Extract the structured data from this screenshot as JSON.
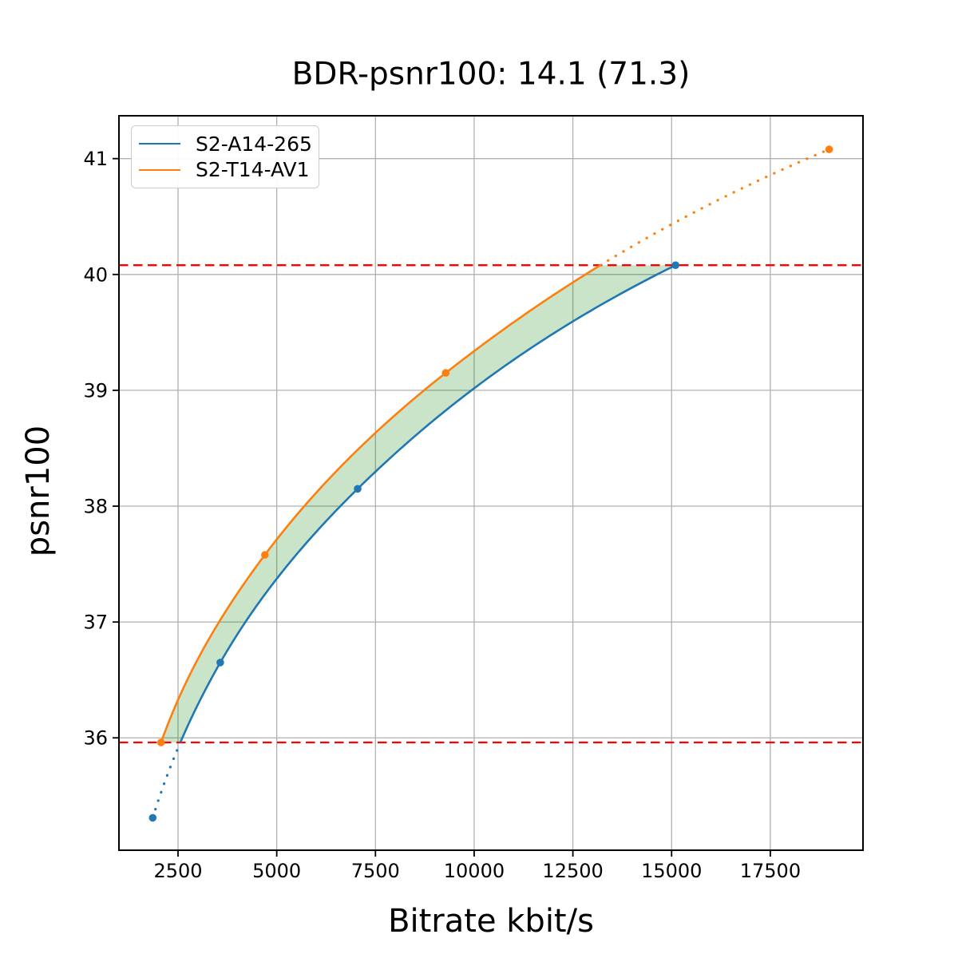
{
  "figure": {
    "title": "BDR-psnr100: 14.1 (71.3)",
    "xlabel": "Bitrate kbit/s",
    "ylabel": "psnr100"
  },
  "legend": {
    "position": "upper-left",
    "items": [
      {
        "label": "S2-A14-265",
        "color": "#1f77b4"
      },
      {
        "label": "S2-T14-AV1",
        "color": "#ff7f0e"
      }
    ]
  },
  "chart_data": {
    "type": "line",
    "title": "BDR-psnr100: 14.1 (71.3)",
    "xlabel": "Bitrate kbit/s",
    "ylabel": "psnr100",
    "xlim": [
      1004,
      19847
    ],
    "ylim": [
      35.03,
      41.37
    ],
    "xticks": [
      2500,
      5000,
      7500,
      10000,
      12500,
      15000,
      17500
    ],
    "yticks": [
      36,
      37,
      38,
      39,
      40,
      41
    ],
    "grid": true,
    "grid_color": "#b0b0b0",
    "interpolation": "pchip-log-bitrate",
    "series": [
      {
        "name": "S2-A14-265",
        "color": "#1f77b4",
        "marker": "circle",
        "points": [
          [
            1860,
            35.31
          ],
          [
            3570,
            36.65
          ],
          [
            7050,
            38.15
          ],
          [
            15100,
            40.08
          ]
        ]
      },
      {
        "name": "S2-T14-AV1",
        "color": "#ff7f0e",
        "marker": "circle",
        "points": [
          [
            2070,
            35.96
          ],
          [
            4700,
            37.58
          ],
          [
            9280,
            39.15
          ],
          [
            18990,
            41.08
          ]
        ]
      }
    ],
    "overlap_lines": {
      "color": "#ff0000",
      "style": "dashed",
      "y_low": 35.96,
      "y_high": 40.08
    },
    "fill_between": {
      "color": "#008000",
      "opacity": 0.21,
      "y_range": [
        35.96,
        40.08
      ]
    }
  }
}
